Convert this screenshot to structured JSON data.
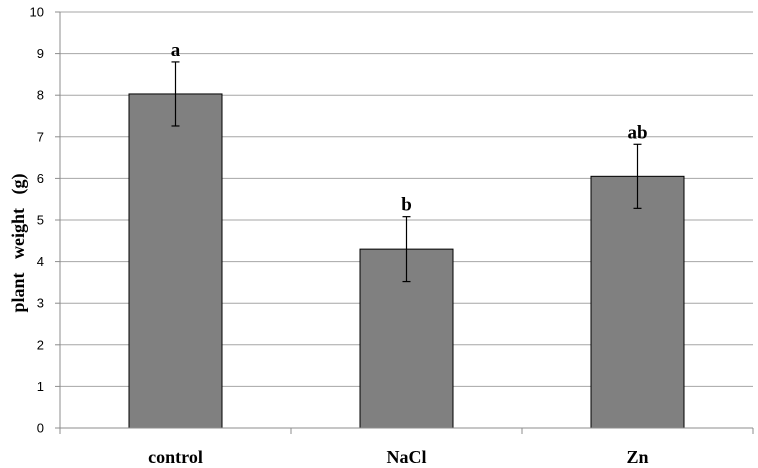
{
  "chart_data": {
    "type": "bar",
    "categories": [
      "control",
      "NaCl",
      "Zn"
    ],
    "values": [
      8.03,
      4.3,
      6.05
    ],
    "error": [
      0.77,
      0.78,
      0.77
    ],
    "significance_labels": [
      "a",
      "b",
      "ab"
    ],
    "title": "",
    "xlabel": "",
    "ylabel": "plant   weight   (g)",
    "ylim": [
      0,
      10
    ],
    "yticks": [
      "0",
      "1",
      "2",
      "3",
      "4",
      "5",
      "6",
      "7",
      "8",
      "9",
      "10"
    ],
    "grid": true,
    "legend": "none",
    "bar_color": "#808080"
  }
}
